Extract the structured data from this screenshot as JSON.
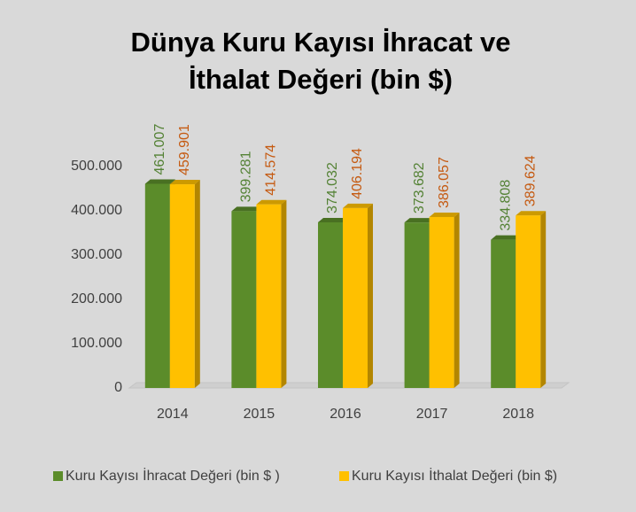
{
  "chart_data": {
    "type": "bar3d",
    "title": [
      "Dünya Kuru Kayısı İhracat ve",
      "İthalat Değeri (bin $)"
    ],
    "categories": [
      "2014",
      "2015",
      "2016",
      "2017",
      "2018"
    ],
    "series": [
      {
        "name": "Kuru Kayısı İhracat Değeri (bin $ )",
        "color": "#5b8c2a",
        "label_color": "#548235",
        "values": [
          461007,
          399281,
          374032,
          373682,
          334808
        ],
        "value_labels": [
          "461.007",
          "399.281",
          "374.032",
          "373.682",
          "334.808"
        ]
      },
      {
        "name": "Kuru Kayısı İthalat Değeri (bin $)",
        "color": "#ffc000",
        "label_color": "#c55a11",
        "values": [
          459901,
          414574,
          406194,
          386057,
          389624
        ],
        "value_labels": [
          "459.901",
          "414.574",
          "406.194",
          "386.057",
          "389.624"
        ]
      }
    ],
    "ylim": [
      0,
      500000
    ],
    "yticks": [
      0,
      {
        "value": 100000,
        "label": "100.000"
      },
      {
        "value": 200000,
        "label": "200.000"
      },
      {
        "value": 300000,
        "label": "300.000"
      },
      {
        "value": 400000,
        "label": "400.000"
      },
      {
        "value": 500000,
        "label": "500.000"
      }
    ],
    "legend": "bottom"
  }
}
